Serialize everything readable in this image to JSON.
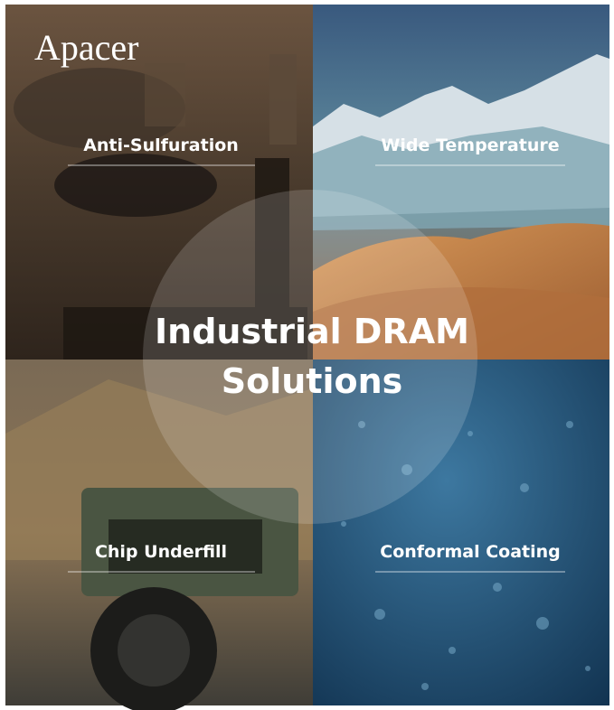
{
  "brand": "Apacer",
  "title": {
    "line1": "Industrial DRAM",
    "line2": "Solutions"
  },
  "quadrants": [
    {
      "label": "Anti-Sulfuration"
    },
    {
      "label": "Wide Temperature"
    },
    {
      "label": "Chip Underfill"
    },
    {
      "label": "Conformal Coating"
    }
  ]
}
